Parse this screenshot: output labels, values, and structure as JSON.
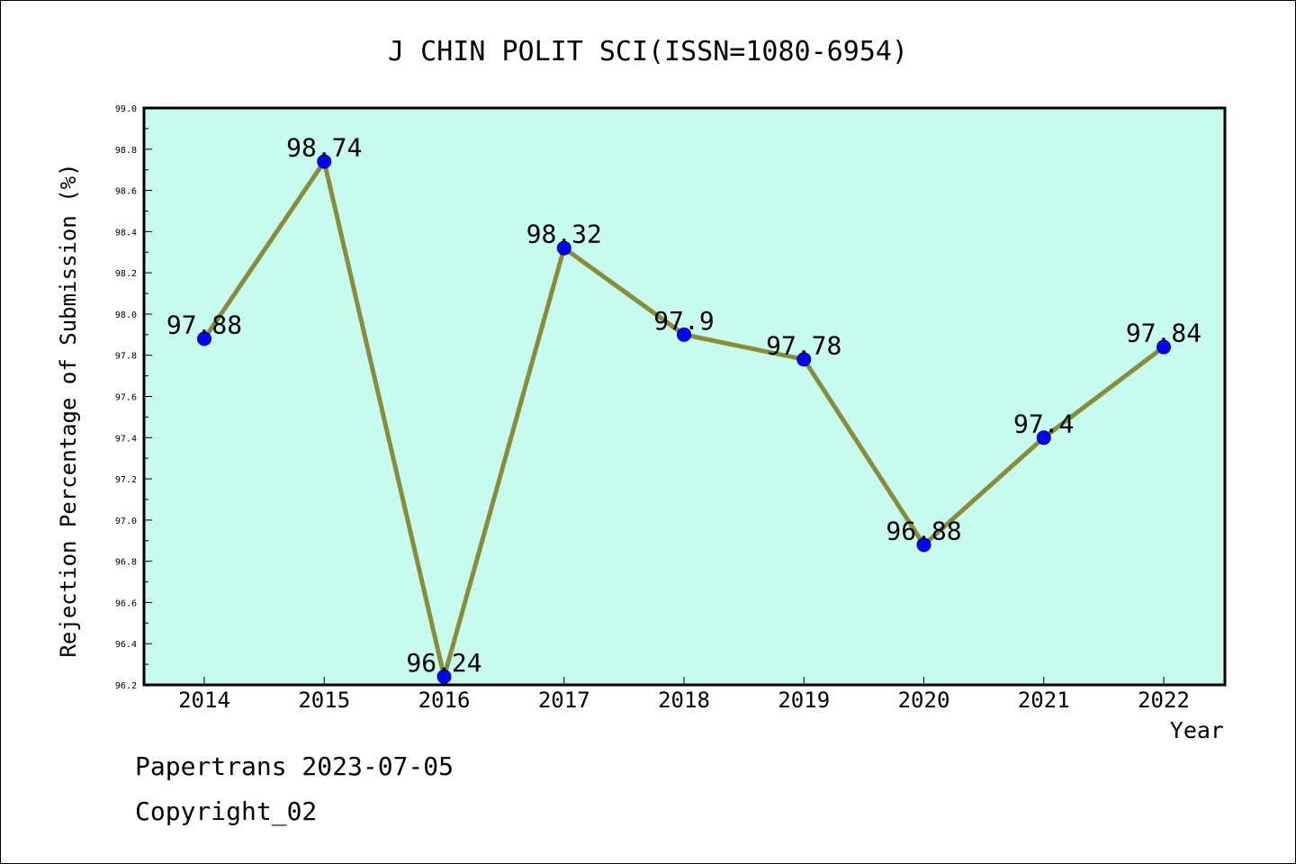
{
  "chart_data": {
    "type": "line",
    "title": "J CHIN POLIT SCI(ISSN=1080-6954)",
    "xlabel": "Year",
    "ylabel": "Rejection Percentage of Submission (%)",
    "categories": [
      "2014",
      "2015",
      "2016",
      "2017",
      "2018",
      "2019",
      "2020",
      "2021",
      "2022"
    ],
    "values": [
      97.88,
      98.74,
      96.24,
      98.32,
      97.9,
      97.78,
      96.88,
      97.4,
      97.84
    ],
    "data_labels": [
      "97.88",
      "98.74",
      "96.24",
      "98.32",
      "97.9",
      "97.78",
      "96.88",
      "97.4",
      "97.84"
    ],
    "ylim": [
      96.2,
      99.0
    ],
    "yticks": [
      "96.2",
      "96.4",
      "96.6",
      "96.8",
      "97.0",
      "97.2",
      "97.4",
      "97.6",
      "97.8",
      "98.0",
      "98.2",
      "98.4",
      "98.6",
      "98.8",
      "99.0"
    ],
    "grid": false,
    "legend": "none",
    "colors": {
      "plot_background": "#c8fcee",
      "line": "#8b8b3c",
      "marker": "#0000ff"
    }
  },
  "footer": {
    "line1": "Papertrans 2023-07-05",
    "line2": "Copyright_02"
  }
}
